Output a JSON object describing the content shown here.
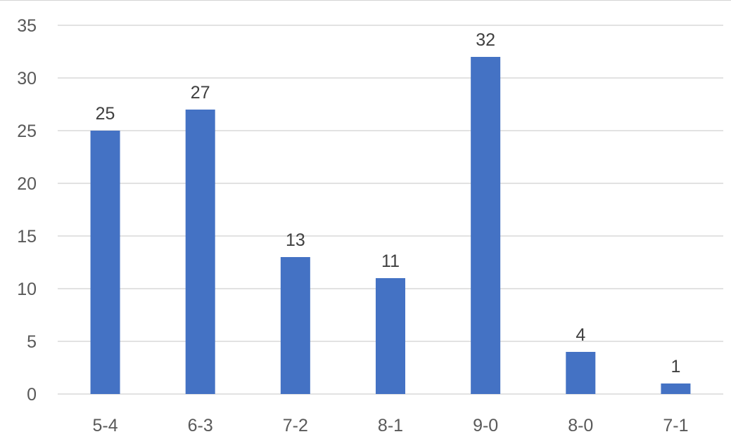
{
  "chart_data": {
    "type": "bar",
    "categories": [
      "5-4",
      "6-3",
      "7-2",
      "8-1",
      "9-0",
      "8-0",
      "7-1"
    ],
    "values": [
      25,
      27,
      13,
      11,
      32,
      4,
      1
    ],
    "title": "",
    "xlabel": "",
    "ylabel": "",
    "ylim": [
      0,
      35
    ],
    "yticks": [
      0,
      5,
      10,
      15,
      20,
      25,
      30,
      35
    ],
    "grid": true,
    "data_labels": true,
    "bar_color": "#4472C4",
    "grid_color": "#D9D9D9"
  }
}
